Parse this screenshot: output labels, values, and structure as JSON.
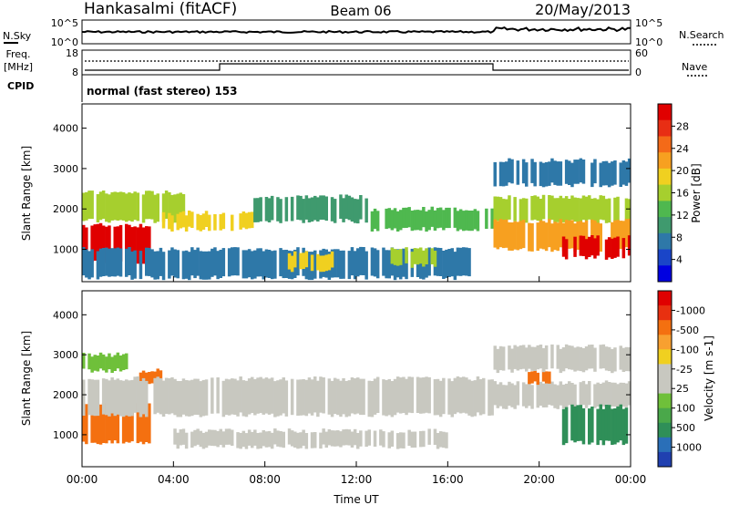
{
  "header": {
    "station": "Hankasalmi (fitACF)",
    "beam": "Beam 06",
    "date": "20/May/2013"
  },
  "left_labels": {
    "nsky": "N.Sky",
    "freq": "Freq.",
    "freq_unit": "[MHz]",
    "cpid": "CPID"
  },
  "right_labels": {
    "nsearch": "N.Search",
    "nave": "Nave"
  },
  "noise_axis": {
    "left_top": "10^5",
    "left_bottom": "10^0",
    "right_top": "10^5",
    "right_bottom": "10^0"
  },
  "freq_axis": {
    "left_top": "18",
    "left_bottom": "8",
    "right_top": "60",
    "right_bottom": "0"
  },
  "cpid_text": "normal (fast stereo) 153",
  "x_axis": {
    "label": "Time UT",
    "ticks": [
      "00:00",
      "04:00",
      "08:00",
      "12:00",
      "16:00",
      "20:00",
      "00:00"
    ]
  },
  "chart_data": [
    {
      "type": "heatmap",
      "panel": "power",
      "ylabel": "Slant Range [km]",
      "y_ticks": [
        1000,
        2000,
        3000,
        4000
      ],
      "ylim": [
        200,
        4600
      ],
      "xlim_hours": [
        0,
        24
      ],
      "colorbar": {
        "label": "Power [dB]",
        "ticks": [
          "4",
          "8",
          "12",
          "16",
          "20",
          "24",
          "28"
        ],
        "colors": [
          "#0000e0",
          "#1a45c8",
          "#2e78a8",
          "#3f9a6e",
          "#4fb84f",
          "#a6cf2e",
          "#f0d020",
          "#f7a020",
          "#f46a18",
          "#e82e14",
          "#e00000"
        ]
      },
      "regions": [
        {
          "t0": 0.0,
          "t1": 3.0,
          "r0": 700,
          "r1": 1600,
          "level": 28
        },
        {
          "t0": 0.0,
          "t1": 4.5,
          "r0": 1700,
          "r1": 2400,
          "level": 14
        },
        {
          "t0": 3.5,
          "t1": 7.5,
          "r0": 1500,
          "r1": 1900,
          "level": 18
        },
        {
          "t0": 7.5,
          "t1": 12.5,
          "r0": 1700,
          "r1": 2300,
          "level": 10
        },
        {
          "t0": 12.5,
          "t1": 18.0,
          "r0": 1500,
          "r1": 2000,
          "level": 12
        },
        {
          "t0": 0.0,
          "t1": 17.0,
          "r0": 300,
          "r1": 1000,
          "level": 8
        },
        {
          "t0": 9.0,
          "t1": 11.0,
          "r0": 500,
          "r1": 900,
          "level": 18
        },
        {
          "t0": 13.5,
          "t1": 15.5,
          "r0": 600,
          "r1": 1000,
          "level": 16
        },
        {
          "t0": 18.0,
          "t1": 24.0,
          "r0": 1700,
          "r1": 2300,
          "level": 14
        },
        {
          "t0": 18.0,
          "t1": 24.0,
          "r0": 1000,
          "r1": 1700,
          "level": 20
        },
        {
          "t0": 21.0,
          "t1": 24.0,
          "r0": 800,
          "r1": 1300,
          "level": 28
        },
        {
          "t0": 18.0,
          "t1": 24.0,
          "r0": 2600,
          "r1": 3200,
          "level": 6
        }
      ]
    },
    {
      "type": "heatmap",
      "panel": "velocity",
      "ylabel": "Slant Range [km]",
      "y_ticks": [
        1000,
        2000,
        3000,
        4000
      ],
      "ylim": [
        200,
        4600
      ],
      "xlim_hours": [
        0,
        24
      ],
      "colorbar": {
        "label": "Velocity [m s-1]",
        "ticks": [
          "1000",
          "500",
          "100",
          "25",
          "-25",
          "-100",
          "-500",
          "-1000"
        ],
        "colors": [
          "#2040b0",
          "#2a6fb8",
          "#2f8f58",
          "#4aa84a",
          "#6fc03a",
          "#c8c8c0",
          "#c8c8c0",
          "#f0d020",
          "#f8a030",
          "#f47010",
          "#e83010",
          "#e00000"
        ]
      },
      "regions": [
        {
          "t0": 0.0,
          "t1": 3.0,
          "r0": 800,
          "r1": 1800,
          "level": -300
        },
        {
          "t0": 2.5,
          "t1": 3.5,
          "r0": 2300,
          "r1": 2600,
          "level": -300
        },
        {
          "t0": 0.0,
          "t1": 18.0,
          "r0": 1500,
          "r1": 2400,
          "level": 0
        },
        {
          "t0": 4.0,
          "t1": 16.0,
          "r0": 700,
          "r1": 1100,
          "level": 0
        },
        {
          "t0": 18.0,
          "t1": 24.0,
          "r0": 1700,
          "r1": 2300,
          "level": 0
        },
        {
          "t0": 19.5,
          "t1": 20.5,
          "r0": 2300,
          "r1": 2600,
          "level": -300
        },
        {
          "t0": 21.0,
          "t1": 24.0,
          "r0": 800,
          "r1": 1700,
          "level": 300
        },
        {
          "t0": 0.0,
          "t1": 2.0,
          "r0": 2600,
          "r1": 3000,
          "level": 150
        },
        {
          "t0": 18.0,
          "t1": 24.0,
          "r0": 2600,
          "r1": 3200,
          "level": 0
        }
      ]
    }
  ]
}
